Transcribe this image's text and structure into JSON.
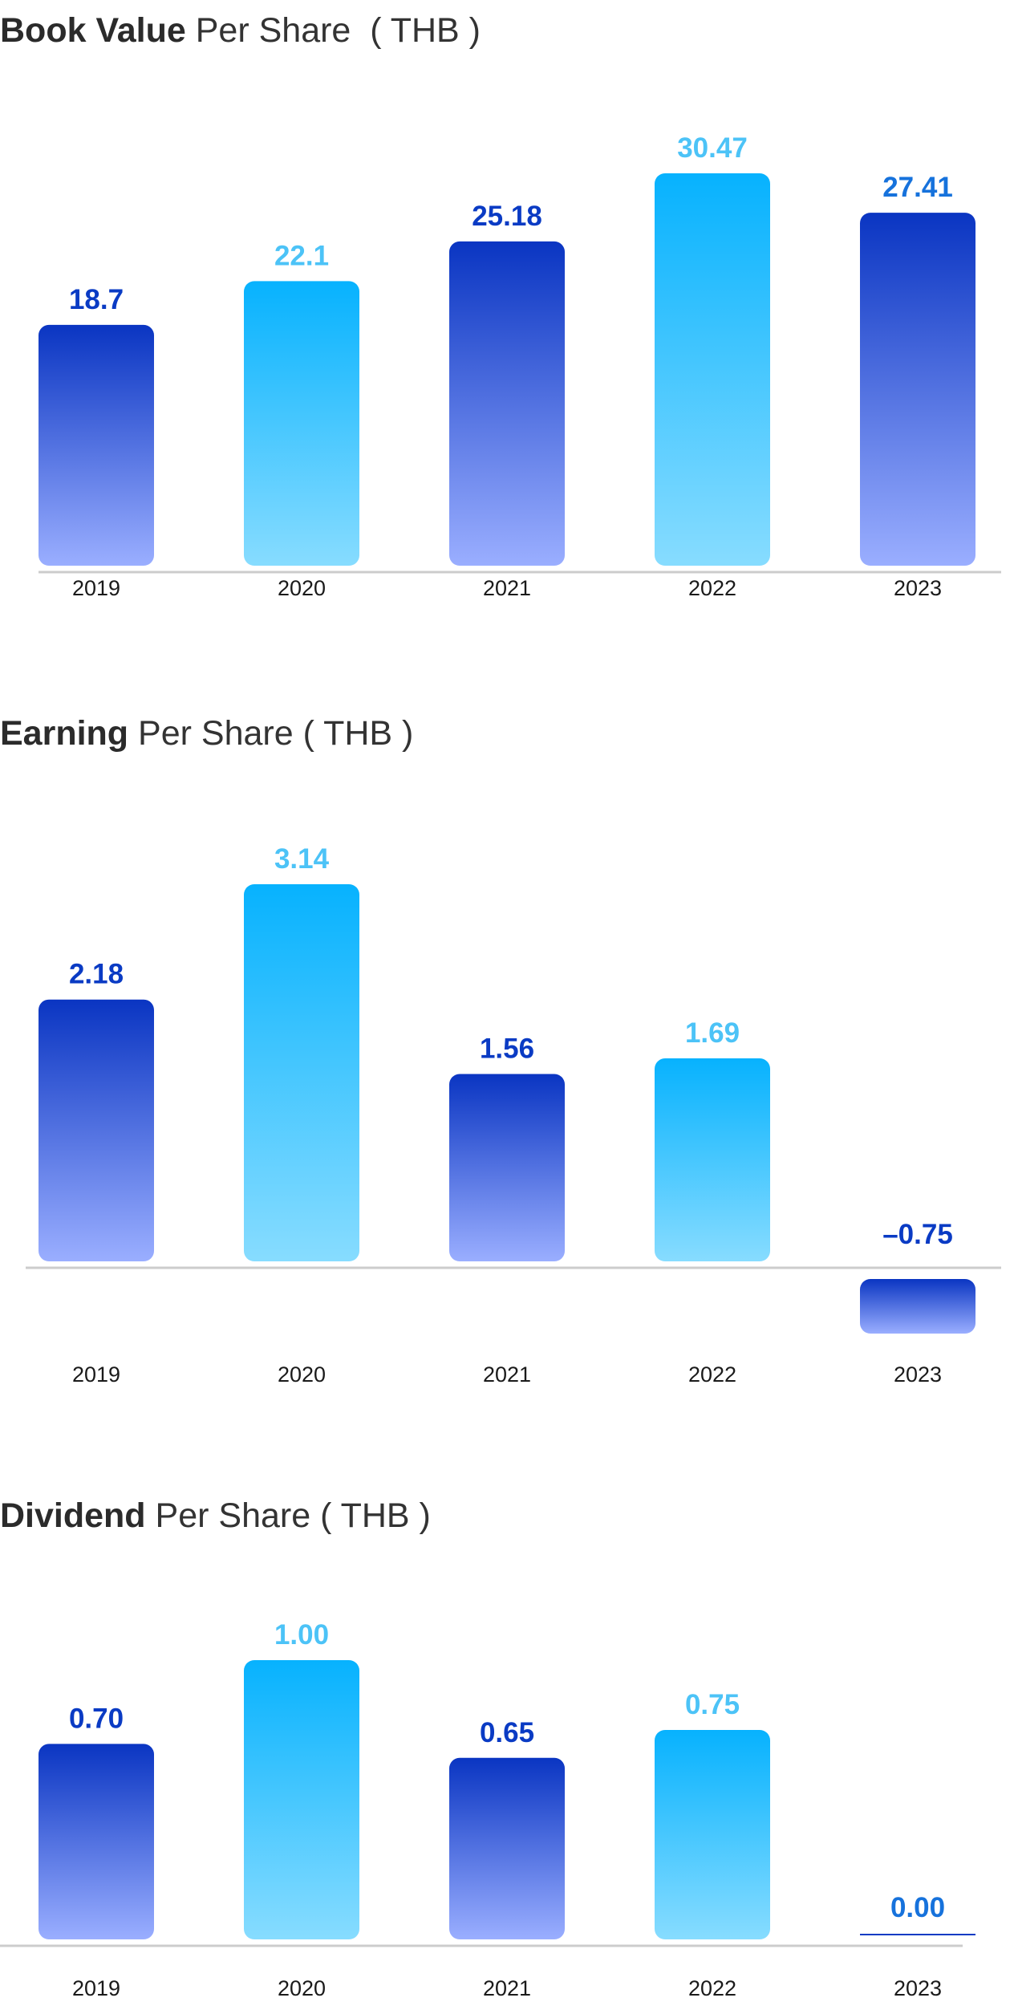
{
  "charts": [
    {
      "title_bold": "Book Value",
      "title_rest": " Per Share  ( THB )"
    },
    {
      "title_bold": "Earning",
      "title_rest": " Per Share ( THB )"
    },
    {
      "title_bold": "Dividend",
      "title_rest": " Per Share ( THB )"
    }
  ],
  "colors": {
    "dark_bar_top": "#0a35c2",
    "dark_bar_bottom": "#9aaeff",
    "light_bar_top": "#07b2fe",
    "light_bar_bottom": "#87dcff",
    "dark_label": "#0a3bc4",
    "light_label": "#4cc3f7",
    "accent_label": "#1672dc",
    "axis": "#cccccc",
    "tick_text": "#1a1a1a"
  },
  "chart_data": [
    {
      "type": "bar",
      "title": "Book Value Per Share  ( THB )",
      "categories": [
        "2019",
        "2020",
        "2021",
        "2022",
        "2023"
      ],
      "values": [
        18.7,
        22.1,
        25.18,
        30.47,
        27.41
      ],
      "data_labels": [
        "18.7",
        "22.1",
        "25.18",
        "30.47",
        "27.41"
      ],
      "bar_styles": [
        "dark",
        "light",
        "dark",
        "light",
        "dark"
      ],
      "label_colors": [
        "dark",
        "light",
        "dark",
        "light",
        "accent"
      ],
      "ylim": [
        0,
        30.47
      ],
      "grid": false,
      "legend": "none"
    },
    {
      "type": "bar",
      "title": "Earning Per Share ( THB )",
      "categories": [
        "2019",
        "2020",
        "2021",
        "2022",
        "2023"
      ],
      "values": [
        2.18,
        3.14,
        1.56,
        1.69,
        -0.75
      ],
      "data_labels": [
        "2.18",
        "3.14",
        "1.56",
        "1.69",
        "–0.75"
      ],
      "bar_styles": [
        "dark",
        "light",
        "dark",
        "light",
        "dark"
      ],
      "label_colors": [
        "dark",
        "light",
        "dark",
        "light",
        "dark"
      ],
      "ylim": [
        -0.75,
        3.14
      ],
      "grid": false,
      "legend": "none"
    },
    {
      "type": "bar",
      "title": "Dividend Per Share ( THB )",
      "categories": [
        "2019",
        "2020",
        "2021",
        "2022",
        "2023"
      ],
      "values": [
        0.7,
        1.0,
        0.65,
        0.75,
        0.0
      ],
      "data_labels": [
        "0.70",
        "1.00",
        "0.65",
        "0.75",
        "0.00"
      ],
      "bar_styles": [
        "dark",
        "light",
        "dark",
        "light",
        "dark"
      ],
      "label_colors": [
        "dark",
        "light",
        "dark",
        "light",
        "accent"
      ],
      "ylim": [
        0,
        1.0
      ],
      "grid": false,
      "legend": "none"
    }
  ]
}
